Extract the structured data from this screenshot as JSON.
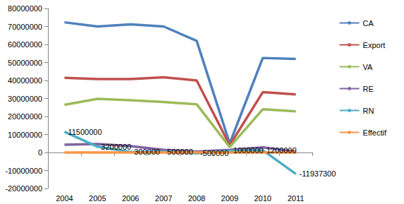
{
  "chart_data": {
    "type": "line",
    "categories": [
      "2004",
      "2005",
      "2006",
      "2007",
      "2008",
      "2009",
      "2010",
      "2011"
    ],
    "series": [
      {
        "name": "CA",
        "color": "#4f81bd",
        "values": [
          72300000,
          70000000,
          71200000,
          70000000,
          62000000,
          5000000,
          52500000,
          52000000
        ]
      },
      {
        "name": "Export",
        "color": "#c0504d",
        "values": [
          41500000,
          40800000,
          40800000,
          41800000,
          40000000,
          4000000,
          33500000,
          32300000
        ]
      },
      {
        "name": "VA",
        "color": "#9bbb59",
        "values": [
          26500000,
          29800000,
          29000000,
          28000000,
          26800000,
          3000000,
          24000000,
          22800000
        ]
      },
      {
        "name": "RE",
        "color": "#8064a2",
        "values": [
          4300000,
          4700000,
          3500000,
          1500000,
          500000,
          1500000,
          2800000,
          500000
        ]
      },
      {
        "name": "RN",
        "color": "#4bacc6",
        "data_labels": true,
        "values": [
          11500000,
          3200000,
          300000,
          500000,
          -500000,
          1000000,
          1200000,
          -11937300
        ]
      },
      {
        "name": "Effectif",
        "color": "#f79646",
        "values": [
          200,
          200,
          200,
          200,
          200,
          200,
          200,
          200
        ]
      }
    ],
    "ylim": [
      -20000000,
      80000000
    ],
    "yticks": [
      -20000000,
      -10000000,
      0,
      10000000,
      20000000,
      30000000,
      40000000,
      50000000,
      60000000,
      70000000,
      80000000
    ],
    "grid": false,
    "legend": "right"
  }
}
